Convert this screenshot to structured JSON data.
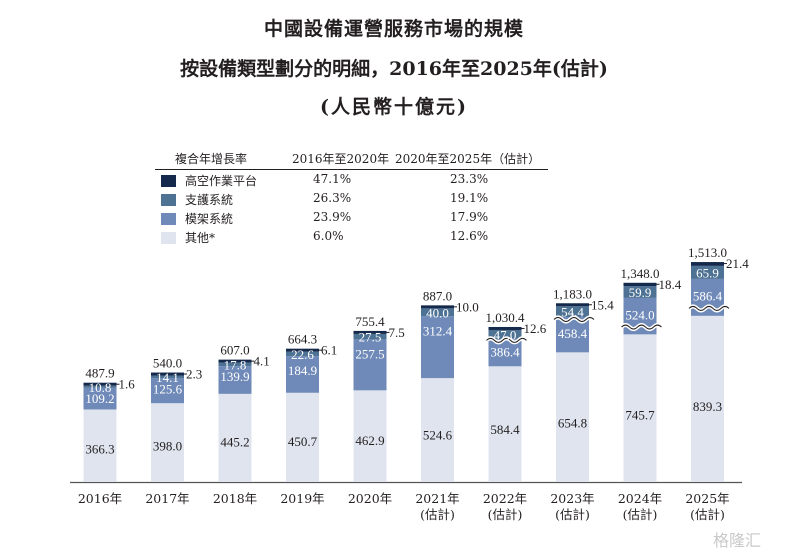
{
  "title": {
    "line1": "中國設備運營服務市場的規模",
    "line2": "按設備類型劃分的明細，2016年至2025年(估計)",
    "line3": "(人民幣十億元)"
  },
  "legend": {
    "header_label": "複合年增長率",
    "header_col1": "2016年至2020年",
    "header_col2": "2020年至2025年（估計）",
    "items": [
      {
        "name": "高空作業平台",
        "cagr1": "47.1%",
        "cagr2": "23.3%",
        "color": "#14294b"
      },
      {
        "name": "支護系統",
        "cagr1": "26.3%",
        "cagr2": "19.1%",
        "color": "#4e7294"
      },
      {
        "name": "模架系統",
        "cagr1": "23.9%",
        "cagr2": "17.9%",
        "color": "#6f8ab8"
      },
      {
        "name": "其他*",
        "cagr1": "6.0%",
        "cagr2": "12.6%",
        "color": "#dfe4ef"
      }
    ]
  },
  "watermark": "格隆汇",
  "chart_data": {
    "type": "bar",
    "stacked": true,
    "title": "中國設備運營服務市場的規模按設備類型劃分的明細，2016年至2025年(估計)",
    "subtitle": "(人民幣十億元)",
    "xlabel": "",
    "ylabel": "人民幣十億元",
    "grid": false,
    "legend_position": "top-left",
    "axis_break_years": [
      "2022年",
      "2023年",
      "2024年",
      "2025年"
    ],
    "categories": [
      {
        "year": "2016年",
        "note": ""
      },
      {
        "year": "2017年",
        "note": ""
      },
      {
        "year": "2018年",
        "note": ""
      },
      {
        "year": "2019年",
        "note": ""
      },
      {
        "year": "2020年",
        "note": ""
      },
      {
        "year": "2021年",
        "note": "(估計)"
      },
      {
        "year": "2022年",
        "note": "(估計)"
      },
      {
        "year": "2023年",
        "note": "(估計)"
      },
      {
        "year": "2024年",
        "note": "(估計)"
      },
      {
        "year": "2025年",
        "note": "(估計)"
      }
    ],
    "totals": [
      "487.9",
      "540.0",
      "607.0",
      "664.3",
      "755.4",
      "887.0",
      "1,030.4",
      "1,183.0",
      "1,348.0",
      "1,513.0"
    ],
    "series": [
      {
        "name": "其他*",
        "values": [
          366.3,
          398.0,
          445.2,
          450.7,
          462.9,
          524.6,
          584.4,
          654.8,
          745.7,
          839.3
        ]
      },
      {
        "name": "模架系統",
        "values": [
          109.2,
          125.6,
          139.9,
          184.9,
          257.5,
          312.4,
          386.4,
          458.4,
          524.0,
          586.4
        ]
      },
      {
        "name": "支護系統",
        "values": [
          10.8,
          14.1,
          17.8,
          22.6,
          27.5,
          40.0,
          47.0,
          54.4,
          59.9,
          65.9
        ]
      },
      {
        "name": "高空作業平台",
        "values": [
          1.6,
          2.3,
          4.1,
          6.1,
          7.5,
          10.0,
          12.6,
          15.4,
          18.4,
          21.4
        ]
      }
    ]
  }
}
